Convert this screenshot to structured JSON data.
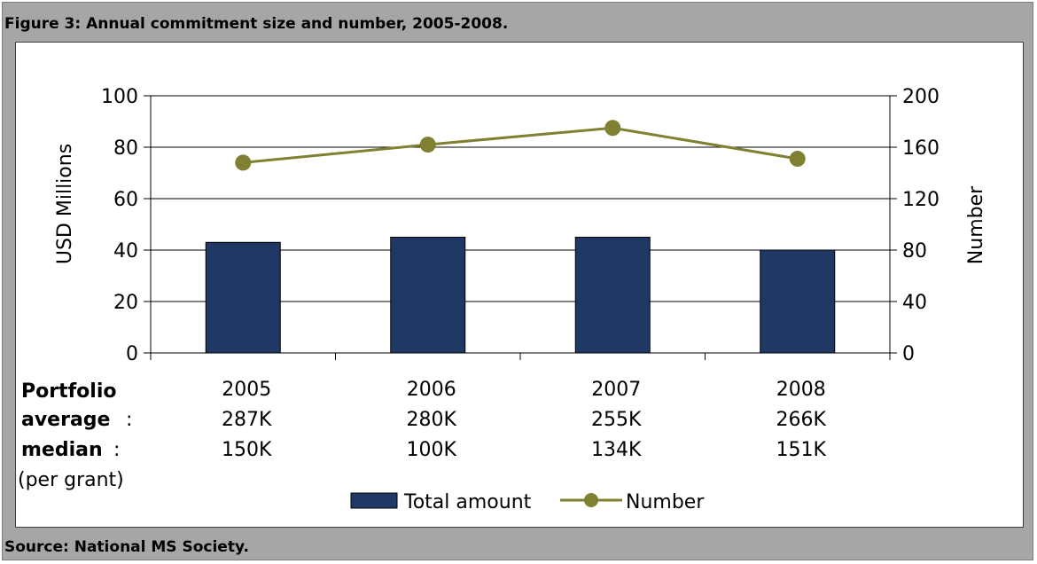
{
  "figure": {
    "title": "Figure 3: Annual commitment size and number, 2005-2008.",
    "source": "Source: National MS Society."
  },
  "chart_data": {
    "type": "bar",
    "categories": [
      "2005",
      "2006",
      "2007",
      "2008"
    ],
    "series": [
      {
        "name": "Total amount",
        "type": "bar",
        "axis": "left",
        "color": "#1f3864",
        "values": [
          43,
          45,
          45,
          40
        ]
      },
      {
        "name": "Number",
        "type": "line",
        "axis": "right",
        "color": "#808032",
        "values": [
          148,
          162,
          175,
          151
        ]
      }
    ],
    "ylabel": "USD Millions",
    "y2label": "Number",
    "ylim": [
      0,
      100
    ],
    "y2lim": [
      0,
      200
    ],
    "yticks": [
      "0",
      "20",
      "40",
      "60",
      "80",
      "100"
    ],
    "y2ticks": [
      "0",
      "40",
      "80",
      "120",
      "160",
      "200"
    ],
    "grid": true,
    "legend_position": "bottom"
  },
  "portfolio": {
    "heading": "Portfolio",
    "average_label": "average",
    "median_label": "median",
    "colon": ":",
    "per_grant": "(per grant)",
    "average": [
      "287K",
      "280K",
      "255K",
      "266K"
    ],
    "median": [
      "150K",
      "100K",
      "134K",
      "151K"
    ]
  }
}
